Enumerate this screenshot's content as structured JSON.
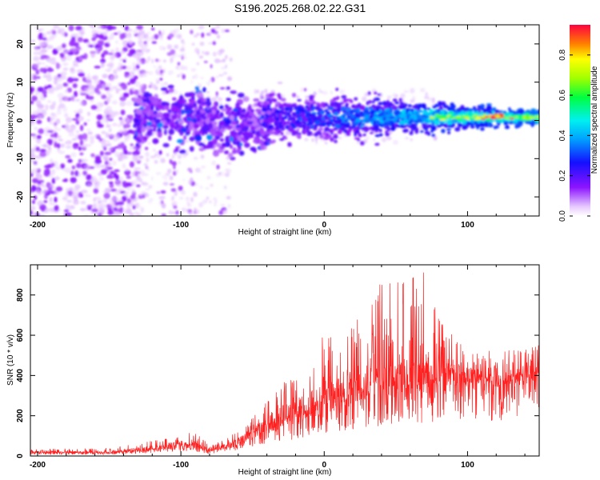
{
  "title": "S196.2025.268.02.22.G31",
  "chart_data": [
    {
      "type": "heatmap",
      "xlabel": "Height of straight line (km)",
      "ylabel": "Frequency (Hz)",
      "xlim": [
        -205,
        150
      ],
      "ylim": [
        -25,
        25
      ],
      "xticks": [
        -200,
        -100,
        0,
        100
      ],
      "yticks": [
        -20,
        -10,
        0,
        10,
        20
      ],
      "colorbar": {
        "label": "Normalized spectral amplitude",
        "range": [
          0,
          0.95
        ],
        "ticks": [
          0.0,
          0.2,
          0.4,
          0.6,
          0.8
        ]
      },
      "description_points": [
        {
          "x_range": [
            -205,
            -130
          ],
          "freq_range": [
            -25,
            25
          ],
          "amplitude": "low",
          "pattern": "scattered noise"
        },
        {
          "x_range": [
            -130,
            -80
          ],
          "freq_range": [
            -6,
            8
          ],
          "amplitude": "0.15-0.3"
        },
        {
          "x_range": [
            -80,
            150
          ],
          "freq_center": 1,
          "freq_width": 6,
          "amplitude": "0.2-0.95",
          "peak_x": 118
        }
      ]
    },
    {
      "type": "line",
      "xlabel": "Height of straight line (km)",
      "ylabel": "SNR (10 * v/v)",
      "xlim": [
        -205,
        150
      ],
      "ylim": [
        0,
        950
      ],
      "xticks": [
        -200,
        -100,
        0,
        100
      ],
      "yticks": [
        0,
        200,
        400,
        600,
        800
      ],
      "color": "#ff2020",
      "envelope": {
        "x": [
          -205,
          -150,
          -125,
          -110,
          -100,
          -90,
          -80,
          -65,
          -50,
          -40,
          -30,
          -20,
          -10,
          0,
          10,
          20,
          30,
          40,
          50,
          60,
          70,
          80,
          90,
          100,
          110,
          120,
          130,
          140,
          150
        ],
        "baseline": [
          15,
          15,
          25,
          35,
          45,
          45,
          20,
          45,
          90,
          130,
          150,
          160,
          180,
          220,
          240,
          260,
          280,
          300,
          310,
          320,
          330,
          330,
          340,
          340,
          350,
          350,
          360,
          370,
          380
        ],
        "peak": [
          35,
          40,
          70,
          90,
          120,
          130,
          50,
          100,
          200,
          270,
          360,
          400,
          480,
          620,
          560,
          700,
          700,
          940,
          860,
          900,
          940,
          700,
          600,
          540,
          500,
          480,
          440,
          460,
          470
        ]
      }
    }
  ]
}
